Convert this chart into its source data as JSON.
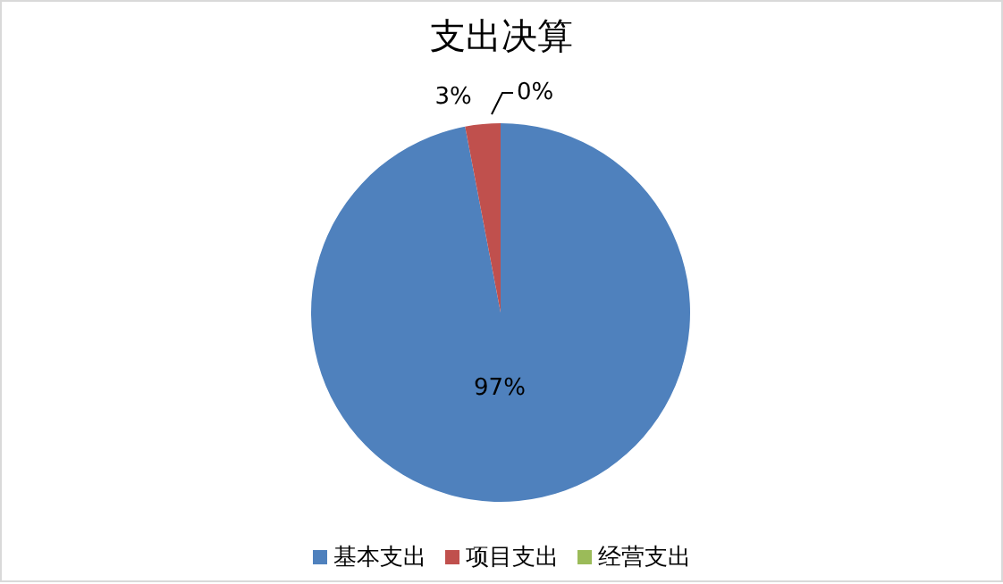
{
  "chart_data": {
    "type": "pie",
    "title": "支出决算",
    "categories": [
      "基本支出",
      "项目支出",
      "经营支出"
    ],
    "values": [
      97,
      3,
      0
    ],
    "colors": [
      "#4f81bd",
      "#c0504d",
      "#9bbb59"
    ],
    "value_labels": [
      "97%",
      "3%",
      "0%"
    ],
    "legend": "bottom"
  }
}
